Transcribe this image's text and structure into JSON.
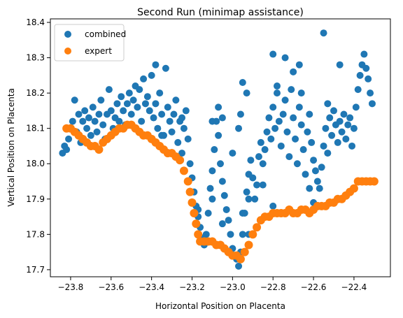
{
  "chart_data": {
    "type": "scatter",
    "title": "Second Run (minimap assistance)",
    "xlabel": "Horizontal Position on Placenta",
    "ylabel": "Vertical Position on Placenta",
    "xlim": [
      -23.9,
      -22.22
    ],
    "ylim": [
      17.68,
      18.41
    ],
    "x_ticks": [
      -23.8,
      -23.6,
      -23.4,
      -23.2,
      -23.0,
      -22.8,
      -22.6,
      -22.4
    ],
    "x_tick_labels": [
      "−23.8",
      "−23.6",
      "−23.4",
      "−23.2",
      "−23.0",
      "−22.8",
      "−22.6",
      "−22.4"
    ],
    "y_ticks": [
      17.7,
      17.8,
      17.9,
      18.0,
      18.1,
      18.2,
      18.3,
      18.4
    ],
    "y_tick_labels": [
      "17.7",
      "17.8",
      "17.9",
      "18.0",
      "18.1",
      "18.2",
      "18.3",
      "18.4"
    ],
    "grid": false,
    "legend_position": "top-left",
    "series": [
      {
        "name": "combined",
        "color": "#1f77b4",
        "points": [
          [
            -23.84,
            18.03
          ],
          [
            -23.83,
            18.05
          ],
          [
            -23.82,
            18.04
          ],
          [
            -23.81,
            18.07
          ],
          [
            -23.8,
            18.1
          ],
          [
            -23.79,
            18.12
          ],
          [
            -23.78,
            18.18
          ],
          [
            -23.77,
            18.09
          ],
          [
            -23.76,
            18.14
          ],
          [
            -23.75,
            18.06
          ],
          [
            -23.74,
            18.12
          ],
          [
            -23.73,
            18.15
          ],
          [
            -23.72,
            18.1
          ],
          [
            -23.71,
            18.13
          ],
          [
            -23.7,
            18.08
          ],
          [
            -23.69,
            18.16
          ],
          [
            -23.68,
            18.12
          ],
          [
            -23.67,
            18.09
          ],
          [
            -23.66,
            18.14
          ],
          [
            -23.65,
            18.18
          ],
          [
            -23.64,
            18.11
          ],
          [
            -23.63,
            18.07
          ],
          [
            -23.62,
            18.14
          ],
          [
            -23.61,
            18.21
          ],
          [
            -23.6,
            18.15
          ],
          [
            -23.59,
            18.1
          ],
          [
            -23.58,
            18.13
          ],
          [
            -23.57,
            18.17
          ],
          [
            -23.56,
            18.12
          ],
          [
            -23.55,
            18.19
          ],
          [
            -23.54,
            18.15
          ],
          [
            -23.53,
            18.11
          ],
          [
            -23.52,
            18.17
          ],
          [
            -23.51,
            18.2
          ],
          [
            -23.5,
            18.14
          ],
          [
            -23.49,
            18.18
          ],
          [
            -23.48,
            18.22
          ],
          [
            -23.47,
            18.16
          ],
          [
            -23.46,
            18.21
          ],
          [
            -23.45,
            18.12
          ],
          [
            -23.44,
            18.24
          ],
          [
            -23.43,
            18.17
          ],
          [
            -23.42,
            18.19
          ],
          [
            -23.41,
            18.15
          ],
          [
            -23.4,
            18.25
          ],
          [
            -23.39,
            18.13
          ],
          [
            -23.38,
            18.17
          ],
          [
            -23.37,
            18.1
          ],
          [
            -23.36,
            18.2
          ],
          [
            -23.35,
            18.14
          ],
          [
            -23.34,
            18.08
          ],
          [
            -23.33,
            18.27
          ],
          [
            -23.32,
            18.16
          ],
          [
            -23.31,
            18.12
          ],
          [
            -23.3,
            18.09
          ],
          [
            -23.29,
            18.14
          ],
          [
            -23.28,
            18.18
          ],
          [
            -23.27,
            18.06
          ],
          [
            -23.26,
            18.12
          ],
          [
            -23.25,
            18.03
          ],
          [
            -23.24,
            18.1
          ],
          [
            -23.23,
            18.15
          ],
          [
            -23.22,
            18.07
          ],
          [
            -23.21,
            18.0
          ],
          [
            -23.2,
            17.96
          ],
          [
            -23.19,
            17.92
          ],
          [
            -23.18,
            17.88
          ],
          [
            -23.17,
            17.85
          ],
          [
            -23.16,
            17.82
          ],
          [
            -23.15,
            17.79
          ],
          [
            -23.14,
            17.77
          ],
          [
            -23.13,
            17.8
          ],
          [
            -23.12,
            17.86
          ],
          [
            -23.11,
            17.93
          ],
          [
            -23.1,
            17.98
          ],
          [
            -23.09,
            18.04
          ],
          [
            -23.08,
            18.12
          ],
          [
            -23.07,
            18.08
          ],
          [
            -23.06,
            18.0
          ],
          [
            -23.05,
            17.95
          ],
          [
            -23.04,
            17.91
          ],
          [
            -23.03,
            17.87
          ],
          [
            -23.02,
            17.84
          ],
          [
            -23.01,
            17.8
          ],
          [
            -23.0,
            17.76
          ],
          [
            -22.99,
            17.74
          ],
          [
            -22.98,
            17.73
          ],
          [
            -22.97,
            17.71
          ],
          [
            -22.96,
            17.75
          ],
          [
            -22.95,
            17.8
          ],
          [
            -22.94,
            17.86
          ],
          [
            -22.93,
            17.92
          ],
          [
            -22.92,
            17.97
          ],
          [
            -22.91,
            18.01
          ],
          [
            -22.9,
            17.96
          ],
          [
            -22.89,
            17.9
          ],
          [
            -22.88,
            17.94
          ],
          [
            -22.87,
            18.02
          ],
          [
            -22.86,
            18.06
          ],
          [
            -22.85,
            18.0
          ],
          [
            -22.84,
            18.04
          ],
          [
            -22.83,
            18.09
          ],
          [
            -22.82,
            18.13
          ],
          [
            -22.81,
            18.07
          ],
          [
            -22.8,
            18.16
          ],
          [
            -22.79,
            18.1
          ],
          [
            -22.78,
            18.2
          ],
          [
            -22.77,
            18.12
          ],
          [
            -22.76,
            18.05
          ],
          [
            -22.75,
            18.14
          ],
          [
            -22.74,
            18.18
          ],
          [
            -22.73,
            18.09
          ],
          [
            -22.72,
            18.02
          ],
          [
            -22.71,
            18.21
          ],
          [
            -22.7,
            18.13
          ],
          [
            -22.69,
            18.07
          ],
          [
            -22.68,
            18.0
          ],
          [
            -22.67,
            18.16
          ],
          [
            -22.66,
            18.11
          ],
          [
            -22.65,
            18.04
          ],
          [
            -22.64,
            17.97
          ],
          [
            -22.63,
            18.09
          ],
          [
            -22.62,
            18.14
          ],
          [
            -22.61,
            18.06
          ],
          [
            -22.6,
            18.01
          ],
          [
            -22.59,
            17.98
          ],
          [
            -22.58,
            17.95
          ],
          [
            -22.57,
            17.93
          ],
          [
            -22.56,
            17.99
          ],
          [
            -22.55,
            18.05
          ],
          [
            -22.54,
            18.1
          ],
          [
            -22.53,
            18.03
          ],
          [
            -22.52,
            18.13
          ],
          [
            -22.51,
            18.08
          ],
          [
            -22.5,
            18.15
          ],
          [
            -22.49,
            18.11
          ],
          [
            -22.48,
            18.06
          ],
          [
            -22.47,
            18.12
          ],
          [
            -22.46,
            18.09
          ],
          [
            -22.45,
            18.14
          ],
          [
            -22.44,
            18.07
          ],
          [
            -22.43,
            18.11
          ],
          [
            -22.42,
            18.13
          ],
          [
            -22.41,
            18.05
          ],
          [
            -22.4,
            18.1
          ],
          [
            -22.39,
            18.16
          ],
          [
            -22.38,
            18.21
          ],
          [
            -22.37,
            18.25
          ],
          [
            -22.36,
            18.28
          ],
          [
            -22.35,
            18.31
          ],
          [
            -22.34,
            18.27
          ],
          [
            -22.33,
            18.24
          ],
          [
            -22.32,
            18.2
          ],
          [
            -22.31,
            18.17
          ],
          [
            -22.95,
            18.23
          ],
          [
            -22.93,
            18.2
          ],
          [
            -23.07,
            18.16
          ],
          [
            -22.8,
            18.31
          ],
          [
            -22.78,
            18.22
          ],
          [
            -22.74,
            18.3
          ],
          [
            -22.7,
            18.26
          ],
          [
            -22.67,
            18.28
          ],
          [
            -22.66,
            18.2
          ],
          [
            -22.55,
            18.37
          ],
          [
            -22.53,
            18.17
          ],
          [
            -22.47,
            18.28
          ],
          [
            -22.96,
            18.14
          ],
          [
            -23.38,
            18.28
          ],
          [
            -23.35,
            18.08
          ],
          [
            -23.25,
            18.13
          ],
          [
            -23.1,
            18.12
          ],
          [
            -23.05,
            18.13
          ],
          [
            -23.0,
            18.03
          ],
          [
            -22.97,
            18.1
          ],
          [
            -22.92,
            17.9
          ],
          [
            -22.85,
            17.94
          ],
          [
            -22.6,
            17.89
          ],
          [
            -22.62,
            17.93
          ],
          [
            -22.8,
            17.88
          ],
          [
            -22.92,
            17.8
          ],
          [
            -22.95,
            17.86
          ],
          [
            -23.05,
            17.83
          ],
          [
            -23.1,
            17.9
          ],
          [
            -23.17,
            17.87
          ]
        ]
      },
      {
        "name": "expert",
        "color": "#ff7f0e",
        "points": [
          [
            -23.82,
            18.1
          ],
          [
            -23.8,
            18.1
          ],
          [
            -23.78,
            18.09
          ],
          [
            -23.76,
            18.08
          ],
          [
            -23.74,
            18.07
          ],
          [
            -23.72,
            18.06
          ],
          [
            -23.7,
            18.05
          ],
          [
            -23.68,
            18.05
          ],
          [
            -23.66,
            18.04
          ],
          [
            -23.64,
            18.06
          ],
          [
            -23.62,
            18.07
          ],
          [
            -23.6,
            18.08
          ],
          [
            -23.58,
            18.09
          ],
          [
            -23.56,
            18.1
          ],
          [
            -23.54,
            18.1
          ],
          [
            -23.52,
            18.11
          ],
          [
            -23.5,
            18.11
          ],
          [
            -23.48,
            18.1
          ],
          [
            -23.46,
            18.09
          ],
          [
            -23.44,
            18.08
          ],
          [
            -23.42,
            18.08
          ],
          [
            -23.4,
            18.07
          ],
          [
            -23.38,
            18.06
          ],
          [
            -23.36,
            18.05
          ],
          [
            -23.34,
            18.04
          ],
          [
            -23.32,
            18.03
          ],
          [
            -23.3,
            18.03
          ],
          [
            -23.28,
            18.02
          ],
          [
            -23.26,
            18.01
          ],
          [
            -23.24,
            17.98
          ],
          [
            -23.22,
            17.95
          ],
          [
            -23.21,
            17.92
          ],
          [
            -23.2,
            17.89
          ],
          [
            -23.19,
            17.86
          ],
          [
            -23.18,
            17.83
          ],
          [
            -23.17,
            17.8
          ],
          [
            -23.16,
            17.78
          ],
          [
            -23.14,
            17.78
          ],
          [
            -23.12,
            17.78
          ],
          [
            -23.1,
            17.78
          ],
          [
            -23.08,
            17.77
          ],
          [
            -23.06,
            17.77
          ],
          [
            -23.04,
            17.76
          ],
          [
            -23.02,
            17.75
          ],
          [
            -23.0,
            17.74
          ],
          [
            -22.98,
            17.74
          ],
          [
            -22.96,
            17.73
          ],
          [
            -22.94,
            17.75
          ],
          [
            -22.92,
            17.77
          ],
          [
            -22.9,
            17.8
          ],
          [
            -22.88,
            17.82
          ],
          [
            -22.86,
            17.84
          ],
          [
            -22.84,
            17.85
          ],
          [
            -22.82,
            17.85
          ],
          [
            -22.8,
            17.86
          ],
          [
            -22.78,
            17.86
          ],
          [
            -22.76,
            17.86
          ],
          [
            -22.74,
            17.86
          ],
          [
            -22.72,
            17.87
          ],
          [
            -22.7,
            17.86
          ],
          [
            -22.68,
            17.86
          ],
          [
            -22.66,
            17.87
          ],
          [
            -22.64,
            17.87
          ],
          [
            -22.62,
            17.86
          ],
          [
            -22.6,
            17.87
          ],
          [
            -22.58,
            17.88
          ],
          [
            -22.56,
            17.88
          ],
          [
            -22.54,
            17.88
          ],
          [
            -22.52,
            17.89
          ],
          [
            -22.5,
            17.89
          ],
          [
            -22.48,
            17.9
          ],
          [
            -22.46,
            17.9
          ],
          [
            -22.44,
            17.91
          ],
          [
            -22.42,
            17.92
          ],
          [
            -22.4,
            17.93
          ],
          [
            -22.38,
            17.95
          ],
          [
            -22.36,
            17.95
          ],
          [
            -22.34,
            17.95
          ],
          [
            -22.32,
            17.95
          ],
          [
            -22.3,
            17.95
          ]
        ]
      }
    ]
  }
}
